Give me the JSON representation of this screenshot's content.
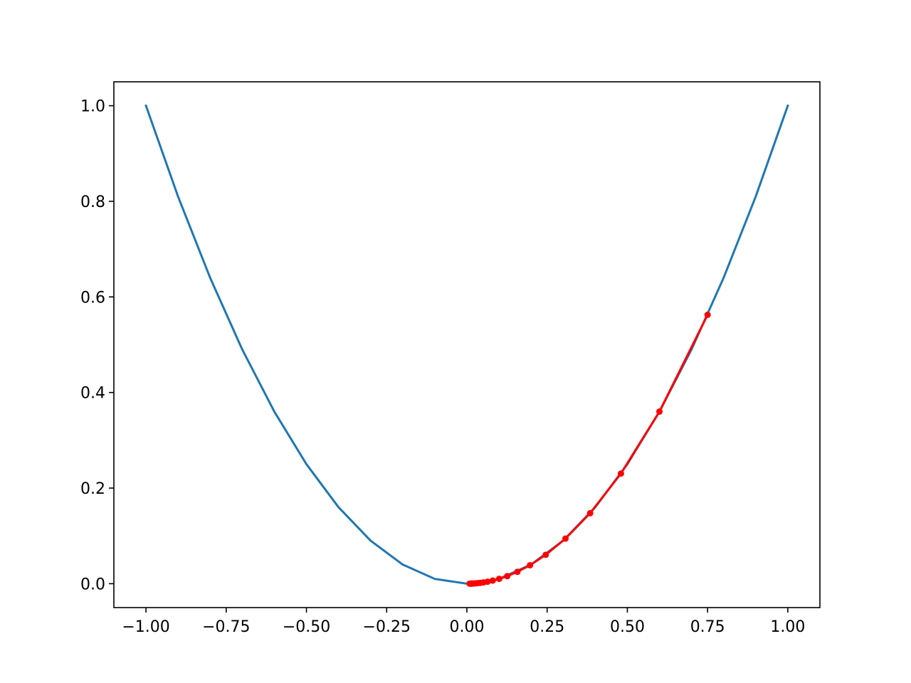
{
  "chart_data": {
    "type": "line",
    "title": "",
    "xlabel": "",
    "ylabel": "",
    "xlim": [
      -1.1,
      1.1
    ],
    "ylim": [
      -0.05,
      1.05
    ],
    "grid": false,
    "x_ticks": [
      {
        "value": -1.0,
        "label": "−1.00"
      },
      {
        "value": -0.75,
        "label": "−0.75"
      },
      {
        "value": -0.5,
        "label": "−0.50"
      },
      {
        "value": -0.25,
        "label": "−0.25"
      },
      {
        "value": 0.0,
        "label": "0.00"
      },
      {
        "value": 0.25,
        "label": "0.25"
      },
      {
        "value": 0.5,
        "label": "0.50"
      },
      {
        "value": 0.75,
        "label": "0.75"
      },
      {
        "value": 1.0,
        "label": "1.00"
      }
    ],
    "y_ticks": [
      {
        "value": 0.0,
        "label": "0.0"
      },
      {
        "value": 0.2,
        "label": "0.2"
      },
      {
        "value": 0.4,
        "label": "0.4"
      },
      {
        "value": 0.6,
        "label": "0.6"
      },
      {
        "value": 0.8,
        "label": "0.8"
      },
      {
        "value": 1.0,
        "label": "1.0"
      }
    ],
    "series": [
      {
        "color": "#1f77b4",
        "marker": "none",
        "x": [
          -1.0,
          -0.9,
          -0.8,
          -0.7,
          -0.6,
          -0.5,
          -0.4,
          -0.3,
          -0.2,
          -0.1,
          0.0,
          0.1,
          0.2,
          0.3,
          0.4,
          0.5,
          0.6,
          0.7,
          0.8,
          0.9,
          1.0
        ],
        "y": [
          1.0,
          0.81,
          0.64,
          0.49,
          0.36,
          0.25,
          0.16,
          0.09,
          0.04,
          0.01,
          0.0,
          0.01,
          0.04,
          0.09,
          0.16,
          0.25,
          0.36,
          0.49,
          0.64,
          0.81,
          1.0
        ]
      },
      {
        "color": "#ff0000",
        "marker": "circle",
        "x": [
          0.75,
          0.6,
          0.48,
          0.384,
          0.3072,
          0.24576,
          0.196608,
          0.1572864,
          0.12582912,
          0.100663296,
          0.0805306368,
          0.0644245094,
          0.0515396075,
          0.041231686,
          0.0329853488,
          0.026388279,
          0.0211106232,
          0.0168884986,
          0.0135107989,
          0.0108086391,
          0.0086469113
        ],
        "y": [
          0.5625,
          0.36,
          0.2304,
          0.147456,
          0.09437184,
          0.0603979776,
          0.0386547057,
          0.0247390116,
          0.0158329674,
          0.0101330991,
          0.0064851834,
          0.0041505174,
          0.0026563311,
          0.0017000519,
          0.0010880332,
          0.0006963413,
          0.0004456584,
          0.0002852214,
          0.0001825417,
          0.0001168267,
          7.47691e-05
        ]
      }
    ]
  }
}
